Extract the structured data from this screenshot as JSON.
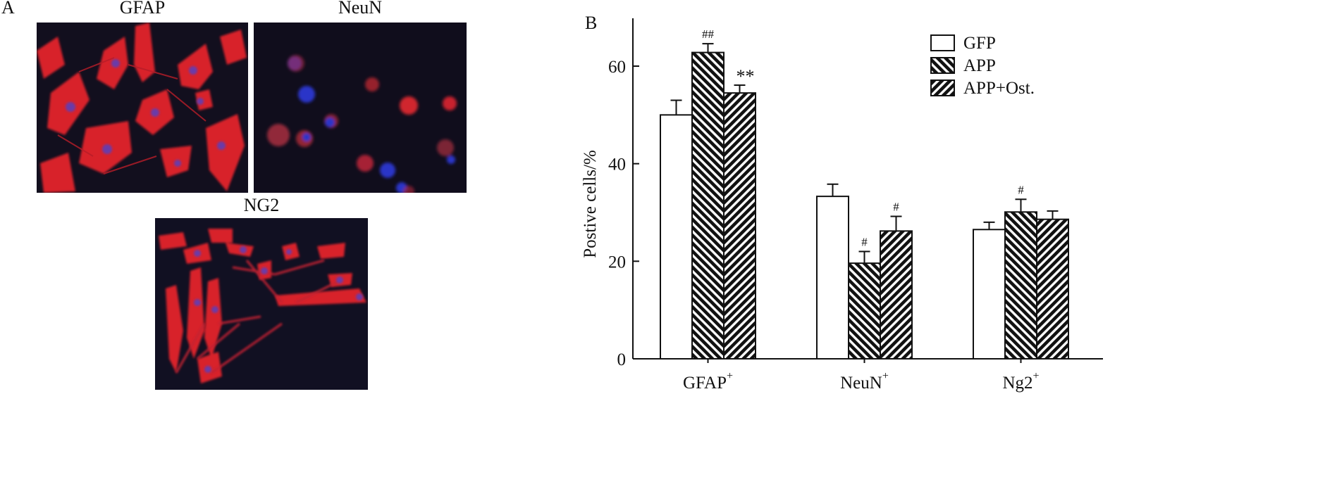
{
  "panel_a": {
    "letter": "A",
    "images": [
      {
        "title": "GFAP"
      },
      {
        "title": "NeuN"
      },
      {
        "title": "NG2"
      }
    ]
  },
  "panel_b": {
    "letter": "B"
  },
  "chart_data": {
    "type": "bar",
    "ylabel": "Postive  cells/%",
    "xlabel": "",
    "ylim": [
      0,
      70
    ],
    "yticks": [
      0,
      20,
      40,
      60
    ],
    "grid": false,
    "legend_position": "top-right",
    "categories": [
      {
        "label": "GFAP",
        "sup": "+"
      },
      {
        "label": "NeuN",
        "sup": "+"
      },
      {
        "label": "Ng2",
        "sup": "+"
      }
    ],
    "series": [
      {
        "name": "GFP",
        "fill": "white",
        "values": [
          50,
          33.3,
          26.5
        ],
        "errors": [
          3,
          2.5,
          1.5
        ],
        "annotations": [
          "",
          "",
          ""
        ]
      },
      {
        "name": "APP",
        "fill": "hatch-back",
        "values": [
          62.8,
          19.6,
          30.1
        ],
        "errors": [
          1.8,
          2.4,
          2.6
        ],
        "annotations": [
          "##",
          "#",
          "#"
        ]
      },
      {
        "name": "APP+Ost.",
        "fill": "hatch-forward",
        "values": [
          54.5,
          26.2,
          28.6
        ],
        "errors": [
          1.6,
          3,
          1.7
        ],
        "annotations": [
          "**",
          "#",
          ""
        ]
      }
    ]
  },
  "colors": {
    "bar_outline": "#111111",
    "micro_background": "#120f1e",
    "cell_red": "#d8222c",
    "nucleus_blue": "#2a34c8"
  }
}
